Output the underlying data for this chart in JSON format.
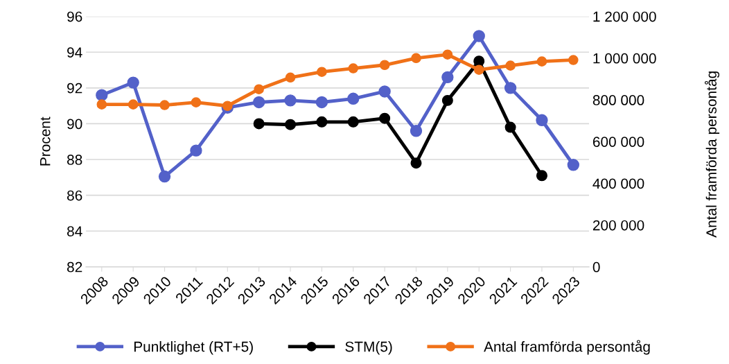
{
  "chart_data": {
    "type": "line",
    "ylabel": "Procent",
    "y2label": "Antal framförda persontåg",
    "categories": [
      "2008",
      "2009",
      "2010",
      "2011",
      "2012",
      "2013",
      "2014",
      "2015",
      "2016",
      "2017",
      "2018",
      "2019",
      "2020",
      "2021",
      "2022",
      "2023"
    ],
    "series": [
      {
        "name": "Punktlighet (RT+5)",
        "color": "#5361c9",
        "values": [
          91.6,
          92.3,
          87.05,
          88.5,
          90.9,
          91.2,
          91.3,
          91.2,
          91.4,
          91.8,
          89.6,
          92.6,
          94.9,
          92.0,
          90.2,
          87.7
        ]
      },
      {
        "name": "STM(5)",
        "color": "#000000",
        "values": [
          null,
          null,
          null,
          null,
          null,
          90.0,
          89.95,
          90.1,
          90.1,
          90.3,
          87.8,
          91.3,
          93.5,
          89.8,
          87.1,
          null
        ]
      },
      {
        "name": "Antal framförda persontåg",
        "color": "#f07118",
        "axis": "y2",
        "values": [
          778000,
          778000,
          775000,
          788000,
          771000,
          851000,
          907000,
          934000,
          951000,
          967000,
          1000000,
          1017000,
          944000,
          964000,
          984000,
          991000
        ]
      }
    ],
    "ylim": [
      82,
      96
    ],
    "yticks": [
      82,
      84,
      86,
      88,
      90,
      92,
      94,
      96
    ],
    "y2lim": [
      0,
      1200000
    ],
    "y2ticks": [
      0,
      {
        "value": 200000,
        "label": "200 000"
      },
      {
        "value": 400000,
        "label": "400 000"
      },
      {
        "value": 600000,
        "label": "600 000"
      },
      {
        "value": 800000,
        "label": "800 000"
      },
      {
        "value": 1000000,
        "label": "1 000 000"
      },
      {
        "value": 1200000,
        "label": "1 200 000"
      }
    ],
    "grid": "y",
    "legend": "bottom",
    "marker": "circle",
    "line_style": "solid"
  }
}
